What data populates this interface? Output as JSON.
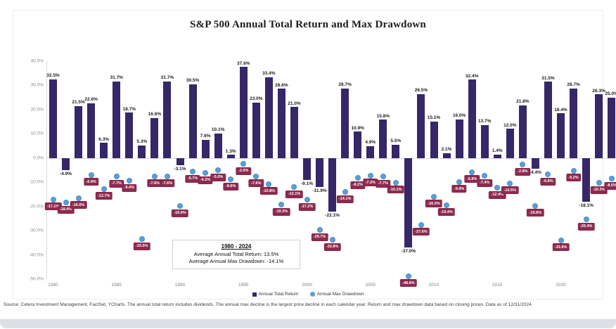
{
  "chart_data": {
    "type": "bar",
    "title": "S&P 500 Annual Total Return and Max Drawdown",
    "years": [
      1980,
      1981,
      1982,
      1983,
      1984,
      1985,
      1986,
      1987,
      1988,
      1989,
      1990,
      1991,
      1992,
      1993,
      1994,
      1995,
      1996,
      1997,
      1998,
      1999,
      2000,
      2001,
      2002,
      2003,
      2004,
      2005,
      2006,
      2007,
      2008,
      2009,
      2010,
      2011,
      2012,
      2013,
      2014,
      2015,
      2016,
      2017,
      2018,
      2019,
      2020,
      2021,
      2022,
      2023,
      2024
    ],
    "series": [
      {
        "name": "Annual Total Return",
        "values": [
          32.5,
          -4.9,
          21.5,
          22.6,
          6.3,
          31.7,
          18.7,
          5.3,
          16.6,
          31.7,
          -3.1,
          30.5,
          7.6,
          10.1,
          1.3,
          37.6,
          23.0,
          33.4,
          28.6,
          21.0,
          -9.1,
          -11.9,
          -22.1,
          28.7,
          10.9,
          4.9,
          15.8,
          5.5,
          -37.0,
          26.5,
          15.1,
          2.1,
          16.0,
          32.4,
          13.7,
          1.4,
          12.0,
          21.8,
          -4.4,
          31.5,
          18.4,
          28.7,
          -18.1,
          26.3,
          25.0
        ]
      },
      {
        "name": "Annual Max Drawdown",
        "values": [
          -17.1,
          -18.4,
          -16.6,
          -6.9,
          -12.7,
          -7.7,
          -9.4,
          -33.5,
          -7.6,
          -7.6,
          -19.9,
          -5.7,
          -6.2,
          -5.0,
          -8.9,
          -2.5,
          -7.6,
          -10.8,
          -19.3,
          -12.1,
          -17.2,
          -29.7,
          -33.8,
          -14.1,
          -8.2,
          -7.2,
          -7.7,
          -10.1,
          -48.8,
          -27.6,
          -16.0,
          -19.4,
          -9.9,
          -5.8,
          -7.4,
          -12.4,
          -10.5,
          -2.8,
          -19.8,
          -6.8,
          -33.9,
          -5.2,
          -25.4,
          -10.3,
          -8.5
        ]
      }
    ],
    "ylim": [
      -50,
      40
    ],
    "ytick_values": [
      40,
      30,
      20,
      10,
      0,
      -10,
      -20,
      -30,
      -40,
      -50
    ],
    "ytick_labels": [
      "40.0%",
      "30.0%",
      "20.0%",
      "10.0%",
      "0.0%",
      "-10.0%",
      "-20.0%",
      "-30.0%",
      "-40.0%",
      "-50.0%"
    ],
    "xtick_years": [
      1980,
      1985,
      1990,
      1995,
      2000,
      2005,
      2010,
      2015,
      2020
    ],
    "legend": [
      "Annual Total Return",
      "Annual Max Drawdown"
    ],
    "legend_position": "bottom",
    "grid": "zero-line-only",
    "annotation": {
      "title": "1980 - 2024",
      "line1": "Average Annual Total Return: 13.5%",
      "line2": "Average Annual Max Drawdown: -14.1%"
    },
    "colors": {
      "return_bar": "#352768",
      "drawdown_label_box": "#8e2a4f",
      "drawdown_dot": "#5b9fd8"
    }
  },
  "source_note": "Source: Cetera Investment Management, FactSet, YCharts. The annual total return includes dividends. The annual max decline is the largest price decline in each calendar year. Return and max drawdown data based on closing prices. Data as of 12/31/2024."
}
